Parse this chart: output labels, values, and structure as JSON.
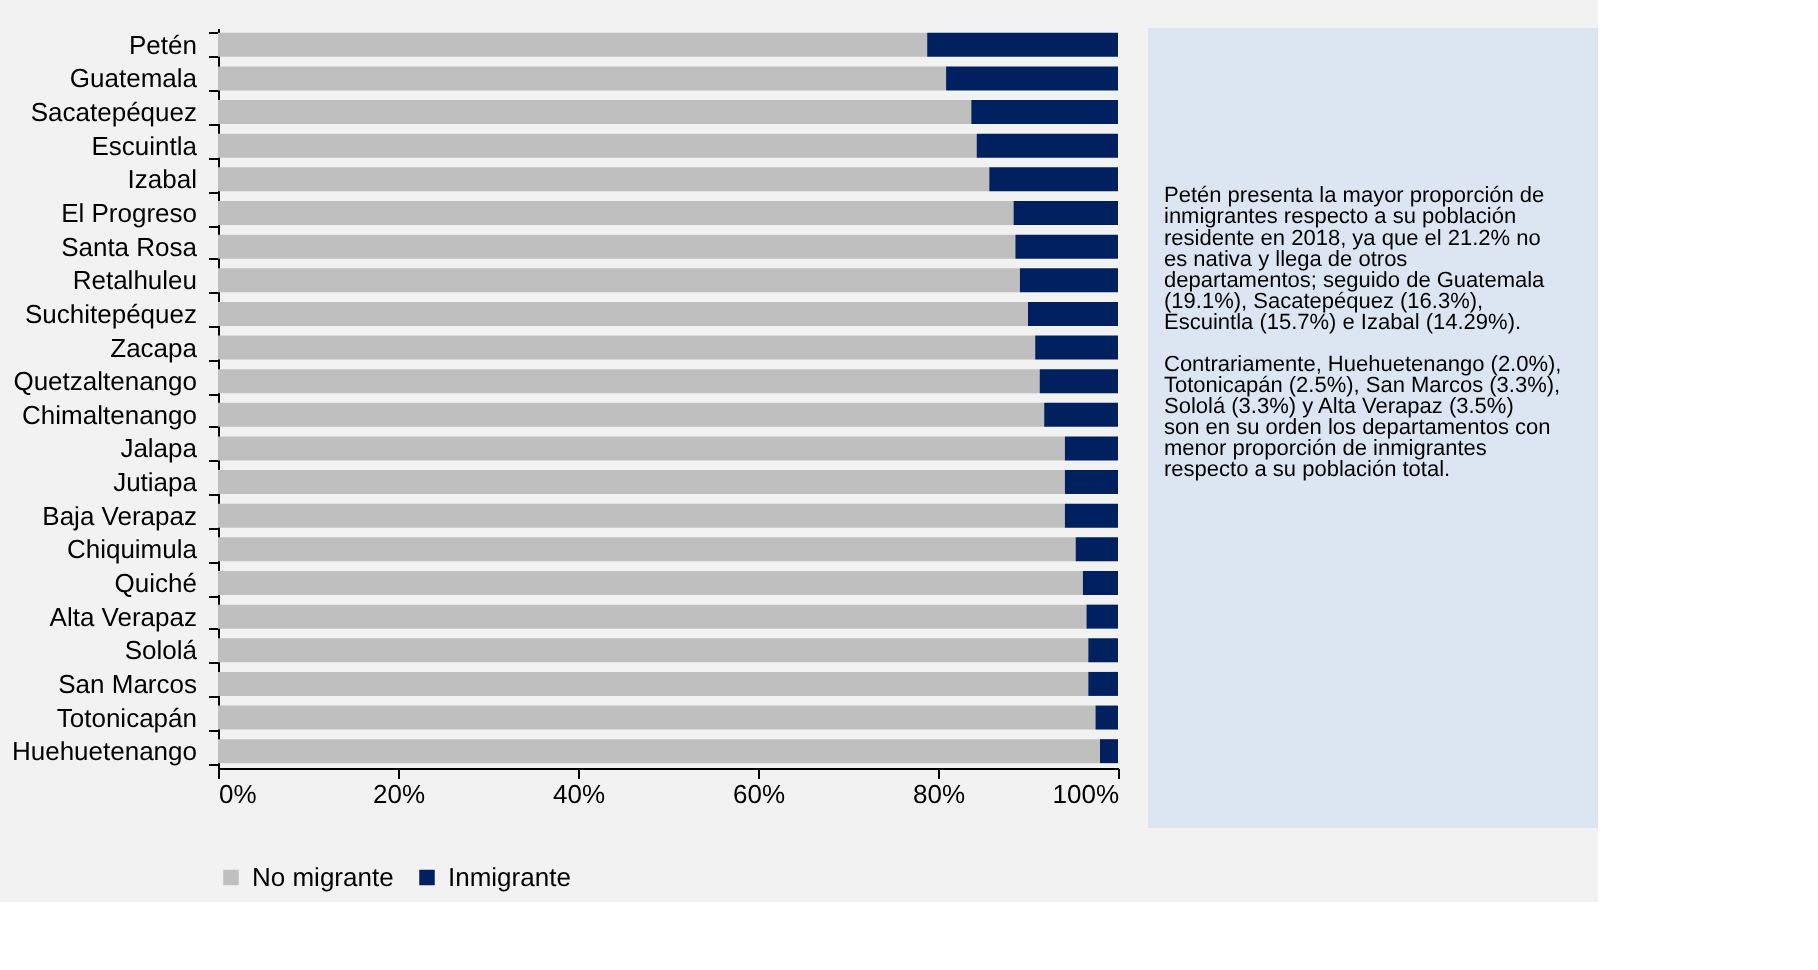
{
  "chart_data": {
    "type": "bar",
    "orientation": "horizontal",
    "stacked": true,
    "categories": [
      "Petén",
      "Guatemala",
      "Sacatepéquez",
      "Escuintla",
      "Izabal",
      "El Progreso",
      "Santa Rosa",
      "Retalhuleu",
      "Suchitepéquez",
      "Zacapa",
      "Quetzaltenango",
      "Chimaltenango",
      "Jalapa",
      "Jutiapa",
      "Baja Verapaz",
      "Chiquimula",
      "Quiché",
      "Alta Verapaz",
      "Sololá",
      "San Marcos",
      "Totonicapán",
      "Huehuetenango"
    ],
    "series": [
      {
        "name": "No migrante",
        "color": "#bfbfbf",
        "values": [
          78.8,
          80.9,
          83.7,
          84.3,
          85.7,
          88.4,
          88.6,
          89.1,
          90.0,
          90.8,
          91.3,
          91.8,
          94.1,
          94.1,
          94.1,
          95.3,
          96.1,
          96.5,
          96.7,
          96.7,
          97.5,
          98.0
        ]
      },
      {
        "name": "Inmigrante",
        "color": "#002060",
        "values": [
          21.2,
          19.1,
          16.3,
          15.7,
          14.3,
          11.6,
          11.4,
          10.9,
          10.0,
          9.2,
          8.7,
          8.2,
          5.9,
          5.9,
          5.9,
          4.7,
          3.9,
          3.5,
          3.3,
          3.3,
          2.5,
          2.0
        ]
      }
    ],
    "xlim": [
      0,
      100
    ],
    "xticks": [
      {
        "value": 0,
        "label": "0%"
      },
      {
        "value": 20,
        "label": "20%"
      },
      {
        "value": 40,
        "label": "40%"
      },
      {
        "value": 60,
        "label": "60%"
      },
      {
        "value": 80,
        "label": "80%"
      },
      {
        "value": 100,
        "label": "100%"
      }
    ],
    "grid": false,
    "legend": "bottom",
    "annotations": [
      "Petén presenta la mayor proporción de inmigrantes respecto a su población residente en 2018, ya que el 21.2% no es nativa y llega de otros departamentos; seguido de Guatemala (19.1%), Sacatepéquez (16.3%), Escuintla (15.7%) e Izabal (14.29%).",
      "Contrariamente, Huehuetenango (2.0%), Totonicapán (2.5%), San Marcos (3.3%), Sololá (3.3%) y Alta Verapaz (3.5%) son en su orden los departamentos con menor proporción de inmigrantes respecto a su población total."
    ]
  }
}
